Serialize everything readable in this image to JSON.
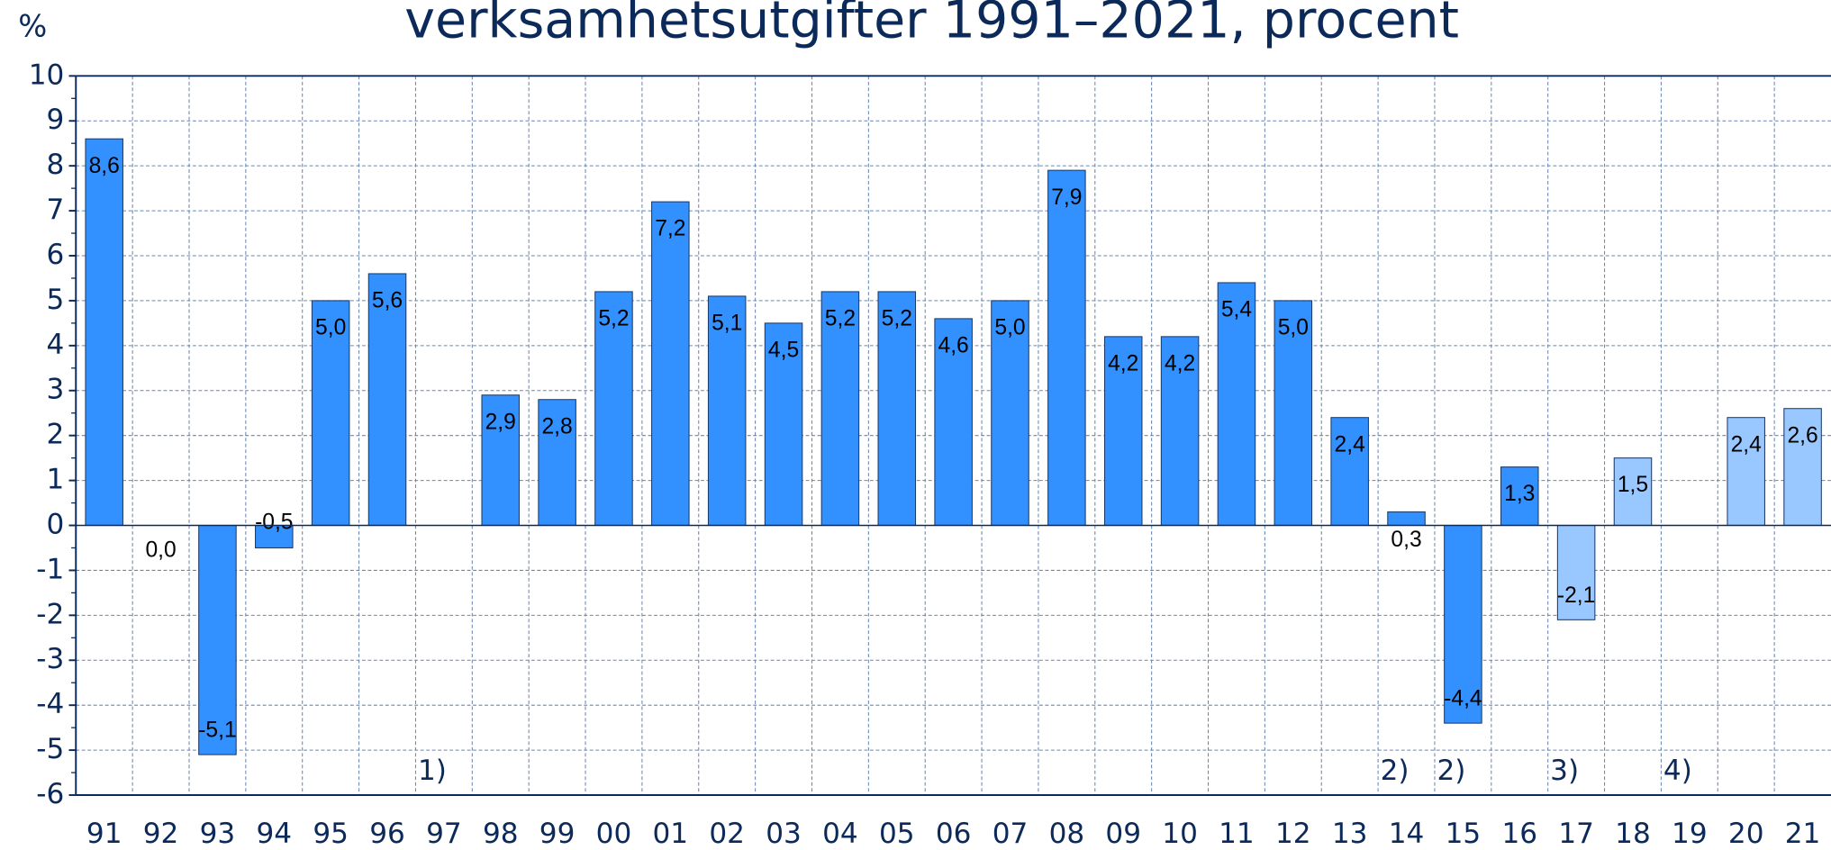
{
  "chart_data": {
    "type": "bar",
    "title": "verksamhetsutgifter 1991–2021, procent",
    "y_label": "%",
    "categories": [
      "91",
      "92",
      "93",
      "94",
      "95",
      "96",
      "97",
      "98",
      "99",
      "00",
      "01",
      "02",
      "03",
      "04",
      "05",
      "06",
      "07",
      "08",
      "09",
      "10",
      "11",
      "12",
      "13",
      "14",
      "15",
      "16",
      "17",
      "18",
      "19",
      "20",
      "21"
    ],
    "values": [
      8.6,
      0.0,
      -5.1,
      -0.5,
      5.0,
      5.6,
      null,
      2.9,
      2.8,
      5.2,
      7.2,
      5.1,
      4.5,
      5.2,
      5.2,
      4.6,
      5.0,
      7.9,
      4.2,
      4.2,
      5.4,
      5.0,
      2.4,
      0.3,
      -4.4,
      1.3,
      -2.1,
      1.5,
      null,
      2.4,
      2.6
    ],
    "value_labels": [
      "8,6",
      "0,0",
      "-5,1",
      "-0,5",
      "5,0",
      "5,6",
      null,
      "2,9",
      "2,8",
      "5,2",
      "7,2",
      "5,1",
      "4,5",
      "5,2",
      "5,2",
      "4,6",
      "5,0",
      "7,9",
      "4,2",
      "4,2",
      "5,4",
      "5,0",
      "2,4",
      "0,3",
      "-4,4",
      "1,3",
      "-2,1",
      "1,5",
      null,
      "2,4",
      "2,6"
    ],
    "colors": [
      "#3390ff",
      "#3390ff",
      "#3390ff",
      "#3390ff",
      "#3390ff",
      "#3390ff",
      "#3390ff",
      "#3390ff",
      "#3390ff",
      "#3390ff",
      "#3390ff",
      "#3390ff",
      "#3390ff",
      "#3390ff",
      "#3390ff",
      "#3390ff",
      "#3390ff",
      "#3390ff",
      "#3390ff",
      "#3390ff",
      "#3390ff",
      "#3390ff",
      "#3390ff",
      "#3390ff",
      "#3390ff",
      "#3390ff",
      "#99c7ff",
      "#99c7ff",
      "#99c7ff",
      "#99c7ff",
      "#99c7ff"
    ],
    "notes": [
      null,
      null,
      null,
      null,
      null,
      null,
      "1)",
      null,
      null,
      null,
      null,
      null,
      null,
      null,
      null,
      null,
      null,
      null,
      null,
      null,
      null,
      null,
      null,
      "2)",
      "2)",
      null,
      "3)",
      null,
      "4)",
      null,
      null
    ],
    "ylim": [
      -6,
      10
    ],
    "yticks": [
      -6,
      -5,
      -4,
      -3,
      -2,
      -1,
      0,
      1,
      2,
      3,
      4,
      5,
      6,
      7,
      8,
      9,
      10
    ],
    "grid": true
  }
}
